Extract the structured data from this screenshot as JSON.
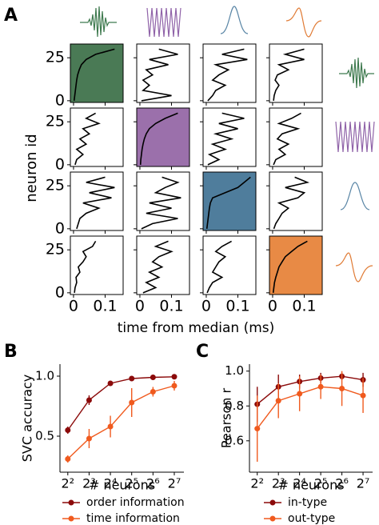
{
  "chart_data": [
    {
      "type": "line-grid",
      "panel_label": "A",
      "ylabel": "neuron id",
      "xlabel": "time from median (ms)",
      "xlim": [
        -0.01,
        0.157
      ],
      "xticks": [
        0,
        0.1
      ],
      "ylim": [
        -1,
        33
      ],
      "yticks": [
        0,
        25
      ],
      "neuron_ids": [
        0,
        3,
        6,
        9,
        12,
        15,
        18,
        21,
        24,
        27,
        30
      ],
      "cell_colors": [
        "#4a7a55",
        "#9b70ab",
        "#4f7d9c",
        "#e88a45"
      ],
      "cells": [
        [
          [
            0.002,
            0.004,
            0.006,
            0.008,
            0.01,
            0.013,
            0.018,
            0.025,
            0.04,
            0.07,
            0.13
          ],
          [
            0.005,
            0.1,
            0.01,
            0.03,
            0.01,
            0.04,
            0.02,
            0.09,
            0.03,
            0.12,
            0.06
          ],
          [
            0.005,
            0.02,
            0.03,
            0.06,
            0.02,
            0.04,
            0.07,
            0.03,
            0.13,
            0.05,
            0.12
          ],
          [
            0.003,
            0.005,
            0.01,
            0.02,
            0.008,
            0.015,
            0.05,
            0.02,
            0.1,
            0.04,
            0.1
          ]
        ],
        [
          [
            0.005,
            0.01,
            0.03,
            0.01,
            0.04,
            0.02,
            0.05,
            0.03,
            0.08,
            0.04,
            0.07
          ],
          [
            0.002,
            0.003,
            0.005,
            0.007,
            0.01,
            0.014,
            0.02,
            0.03,
            0.05,
            0.08,
            0.12
          ],
          [
            0.005,
            0.04,
            0.01,
            0.06,
            0.02,
            0.08,
            0.03,
            0.1,
            0.04,
            0.12,
            0.05
          ],
          [
            0.003,
            0.01,
            0.04,
            0.02,
            0.05,
            0.015,
            0.03,
            0.08,
            0.02,
            0.06,
            0.09
          ]
        ],
        [
          [
            0.01,
            0.015,
            0.02,
            0.04,
            0.08,
            0.03,
            0.12,
            0.05,
            0.13,
            0.04,
            0.1
          ],
          [
            0.005,
            0.04,
            0.12,
            0.02,
            0.1,
            0.03,
            0.13,
            0.05,
            0.08,
            0.12,
            0.07
          ],
          [
            0.002,
            0.004,
            0.006,
            0.008,
            0.01,
            0.013,
            0.02,
            0.06,
            0.1,
            0.12,
            0.14
          ],
          [
            0.004,
            0.01,
            0.02,
            0.03,
            0.05,
            0.02,
            0.08,
            0.1,
            0.04,
            0.11,
            0.07
          ]
        ],
        [
          [
            0.003,
            0.005,
            0.01,
            0.008,
            0.02,
            0.015,
            0.03,
            0.04,
            0.03,
            0.06,
            0.07
          ],
          [
            0.01,
            0.05,
            0.02,
            0.06,
            0.03,
            0.07,
            0.04,
            0.06,
            0.1,
            0.05,
            0.09
          ],
          [
            0.003,
            0.01,
            0.02,
            0.05,
            0.02,
            0.03,
            0.04,
            0.06,
            0.03,
            0.05,
            0.08
          ],
          [
            0.002,
            0.004,
            0.006,
            0.01,
            0.015,
            0.02,
            0.03,
            0.04,
            0.06,
            0.08,
            0.11
          ]
        ]
      ]
    },
    {
      "type": "line",
      "panel_label": "B",
      "ylabel": "SVC accuracy",
      "xlabel": "# neurons",
      "xscale": "log2",
      "x": [
        4,
        8,
        16,
        32,
        64,
        128
      ],
      "xlim": [
        3.1,
        175
      ],
      "xticks": [
        {
          "value": 4,
          "label": "2²"
        },
        {
          "value": 8,
          "label": "2³"
        },
        {
          "value": 16,
          "label": "2⁴"
        },
        {
          "value": 32,
          "label": "2⁵"
        },
        {
          "value": 64,
          "label": "2⁶"
        },
        {
          "value": 128,
          "label": "2⁷"
        }
      ],
      "ylim": [
        0.2,
        1.1
      ],
      "yticks": [
        0.5,
        {
          "value": 1,
          "label": "1.0"
        }
      ],
      "series": [
        {
          "name": "order information",
          "color": "#8b0a0a",
          "values": [
            0.55,
            0.8,
            0.94,
            0.98,
            0.99,
            0.995
          ],
          "errors": [
            0.03,
            0.04,
            0.01,
            0.01,
            0.005,
            0.005
          ]
        },
        {
          "name": "time information",
          "color": "#f05a1e",
          "values": [
            0.31,
            0.48,
            0.58,
            0.78,
            0.87,
            0.92
          ],
          "errors": [
            0.03,
            0.08,
            0.09,
            0.12,
            0.04,
            0.04
          ]
        }
      ]
    },
    {
      "type": "line",
      "panel_label": "C",
      "ylabel": "Pearson r",
      "xlabel": "# neurons",
      "xscale": "log2",
      "x": [
        4,
        8,
        16,
        32,
        64,
        128
      ],
      "xlim": [
        3.1,
        175
      ],
      "xticks": [
        {
          "value": 4,
          "label": "2²"
        },
        {
          "value": 8,
          "label": "2³"
        },
        {
          "value": 16,
          "label": "2⁴"
        },
        {
          "value": 32,
          "label": "2⁵"
        },
        {
          "value": 64,
          "label": "2⁶"
        },
        {
          "value": 128,
          "label": "2⁷"
        }
      ],
      "ylim": [
        0.42,
        1.04
      ],
      "yticks": [
        0.6,
        0.8,
        {
          "value": 1,
          "label": "1.0"
        }
      ],
      "series": [
        {
          "name": "in-type",
          "color": "#8b0a0a",
          "values": [
            0.81,
            0.91,
            0.94,
            0.96,
            0.97,
            0.95
          ],
          "errors": [
            0.1,
            0.07,
            0.04,
            0.03,
            0.02,
            0.04
          ]
        },
        {
          "name": "out-type",
          "color": "#f05a1e",
          "values": [
            0.67,
            0.83,
            0.87,
            0.91,
            0.9,
            0.86
          ],
          "errors": [
            0.19,
            0.1,
            0.1,
            0.07,
            0.1,
            0.1
          ]
        }
      ]
    }
  ]
}
